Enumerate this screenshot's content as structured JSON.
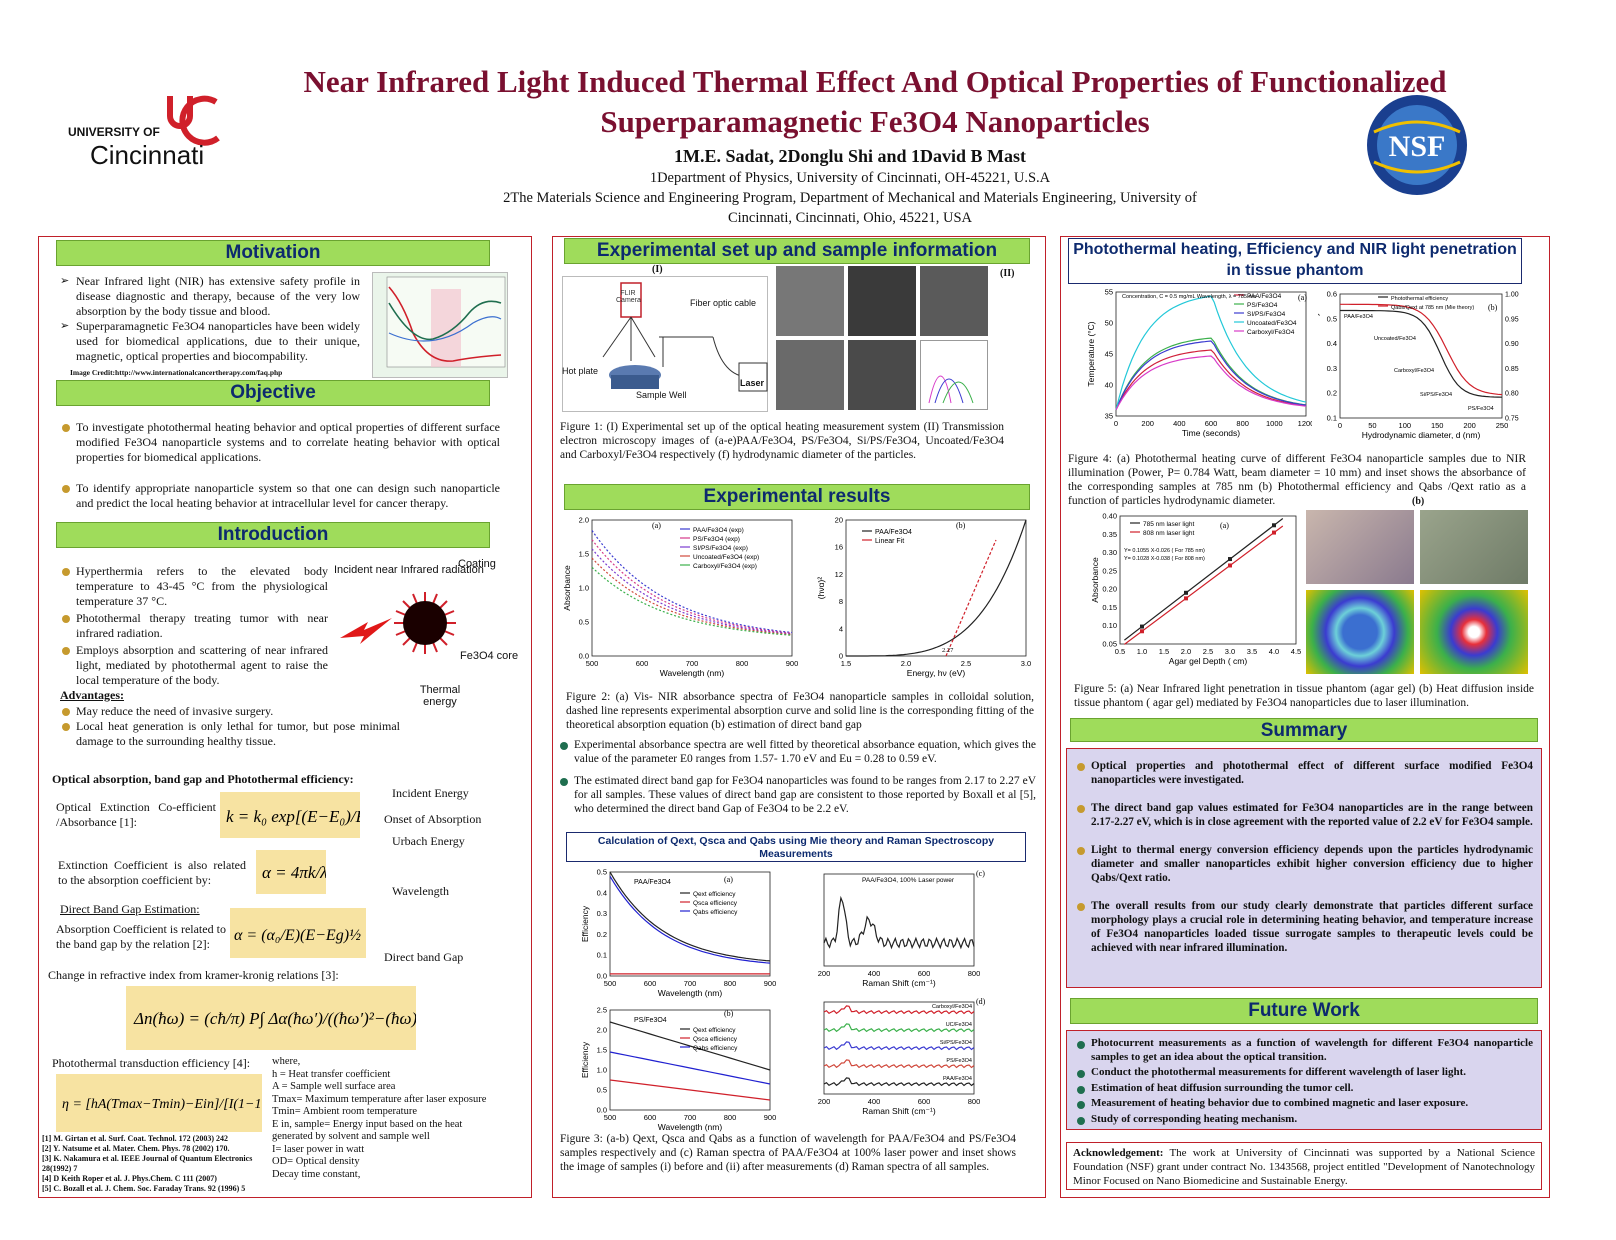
{
  "header": {
    "title_line1": "Near Infrared Light Induced Thermal Effect And Optical Properties of Functionalized",
    "title_line2": "Superparamagnetic Fe3O4 Nanoparticles",
    "authors": "1M.E. Sadat, 2Donglu Shi and 1David B Mast",
    "affil1": "1Department of Physics, University of Cincinnati, OH-45221, U.S.A",
    "affil2": "2The Materials Science and Engineering Program, Department of Mechanical and Materials Engineering, University of",
    "affil3": "Cincinnati, Cincinnati, Ohio,  45221, USA",
    "uc_logo_top": "UNIVERSITY OF",
    "uc_logo_bottom": "Cincinnati",
    "nsf_logo": "NSF"
  },
  "left": {
    "motivation_head": "Motivation",
    "motivation_items": [
      "Near Infrared light (NIR) has extensive safety profile in disease diagnostic and therapy, because of the very low absorption by the body tissue and blood.",
      "Superparamagnetic Fe3O4 nanoparticles have been widely used for biomedical applications, due to their unique, magnetic, optical properties and biocompability."
    ],
    "image_credit": "Image Credit:http://www.internationalcancertherapy.com/faq.php",
    "objective_head": "Objective",
    "objective_items": [
      "To investigate photothermal heating behavior and optical properties of different surface modified Fe3O4 nanoparticle systems and to correlate heating behavior with optical properties for biomedical applications.",
      "To identify appropriate nanoparticle system so that one can design such nanoparticle and predict the local heating behavior at intracellular level for cancer therapy."
    ],
    "intro_head": "Introduction",
    "intro_items": [
      "Hyperthermia refers to the elevated body temperature to 43-45 °C from the physiological temperature 37 °C.",
      "Photothermal therapy treating tumor with near infrared radiation.",
      "Employs absorption and scattering of near infrared light, mediated by photothermal agent to raise the local temperature of the body."
    ],
    "advantages_head": "Advantages:",
    "advantages_items": [
      "May reduce the need of invasive surgery.",
      "Local heat generation is only lethal for tumor, but pose minimal damage to the surrounding healthy tissue."
    ],
    "np_labels": {
      "incident": "Incident near Infrared radiation",
      "coating": "Coating",
      "core": "Fe3O4 core",
      "thermal": "Thermal energy"
    },
    "optical_head": "Optical absorption, band gap and Photothermal efficiency:",
    "eq_labels": {
      "extinction": "Optical Extinction Co-efficient /Absorbance [1]:",
      "incident_energy": "Incident Energy",
      "onset": "Onset of Absorption",
      "urbach": "Urbach Energy",
      "ext_related": "Extinction Coefficient is also related to the absorption coefficient by:",
      "wavelength": "Wavelength",
      "direct_est": "Direct Band Gap Estimation:",
      "abs_related": "Absorption Coefficient is related to the band gap by the relation [2]:",
      "direct_gap": "Direct band Gap",
      "refractive": "Change in refractive index from kramer-kronig relations [3]:",
      "transduction": "Photothermal transduction efficiency [4]:"
    },
    "where_list": [
      "where,",
      "h = Heat transfer coefficient",
      "A = Sample well surface area",
      "Tmax= Maximum temperature after laser exposure",
      "Tmin= Ambient room temperature",
      "E in, sample= Energy input based on the heat generated by solvent and sample well",
      "I= laser power in watt",
      "OD= Optical density",
      "Decay time constant,"
    ],
    "references": [
      "[1] M. Girtan et al.  Surf. Coat. Technol. 172 (2003) 242",
      "[2] Y. Natsume et al.  Mater. Chem. Phys. 78 (2002) 170.",
      "[3] K. Nakamura et al. IEEE Journal of Quantum Electronics 28(1992) 7",
      "[4] D Keith Roper et al. J. Phys.Chem. C 111 (2007)",
      "[5] C. Bozall et al. J. Chem. Soc. Faraday Trans. 92 (1996) 5"
    ]
  },
  "middle": {
    "setup_head": "Experimental set up and sample information",
    "setup_labels": {
      "flir": "FLIR Camera",
      "fiber": "Fiber optic cable",
      "hotplate": "Hot plate",
      "well": "Sample Well",
      "laser": "Laser",
      "i": "(I)",
      "ii": "(II)"
    },
    "fig1_caption": "Figure 1: (I) Experimental set up of the optical heating measurement system (II) Transmission electron microscopy images of (a-e)PAA/Fe3O4, PS/Fe3O4, Si/PS/Fe3O4, Uncoated/Fe3O4 and Carboxyl/Fe3O4 respectively (f) hydrodynamic diameter of the particles.",
    "results_head": "Experimental results",
    "fig2_caption": "Figure 2: (a) Vis- NIR absorbance spectra of Fe3O4 nanoparticle samples in colloidal solution, dashed line represents experimental absorption curve and solid line is the corresponding fitting of the theoretical absorption equation (b) estimation of direct band gap",
    "result_items": [
      "Experimental absorbance spectra are well fitted by theoretical absorbance equation, which gives the value of the parameter E0 ranges from 1.57- 1.70 eV and  Eu = 0.28 to 0.59 eV.",
      "The estimated direct band gap for Fe3O4 nanoparticles was found to be ranges from 2.17 to 2.27 eV for all samples. These values of direct band gap are consistent to those reported by Boxall et al [5], who determined the direct band Gap of Fe3O4 to be 2.2 eV."
    ],
    "mie_head": "Calculation of Qext, Qsca and Qabs using Mie theory and Raman Spectroscopy Measurements",
    "fig3_caption": "Figure 3: (a-b) Qext, Qsca and Qabs as a function of wavelength for PAA/Fe3O4 and PS/Fe3O4 samples respectively and  (c) Raman spectra of PAA/Fe3O4 at 100%  laser power and inset shows the image of samples (i) before and (ii) after measurements (d) Raman spectra of all samples."
  },
  "right": {
    "photo_head": "Photothermal heating, Efficiency and NIR light penetration in tissue phantom",
    "fig4_caption": "Figure 4: (a) Photothermal heating curve of different Fe3O4 nanoparticle samples due to NIR illumination (Power, P= 0.784 Watt, beam diameter = 10 mm) and inset shows the absorbance of the corresponding samples at 785 nm (b) Photothermal efficiency and Qabs /Qext ratio as a function of particles hydrodynamic diameter.",
    "fig5_caption": "Figure 5: (a) Near Infrared light penetration in tissue phantom (agar gel) (b) Heat diffusion inside tissue phantom ( agar gel) mediated by Fe3O4 nanoparticles due to laser illumination.",
    "summary_head": "Summary",
    "summary_items": [
      "Optical properties and photothermal effect of different surface modified Fe3O4 nanoparticles were investigated.",
      "The direct band gap values estimated for Fe3O4 nanoparticles are in the range between 2.17-2.27 eV, which is in close agreement with the reported value of 2.2 eV for Fe3O4 sample.",
      "Light to thermal energy conversion efficiency depends upon the particles hydrodynamic diameter and smaller nanoparticles exhibit higher conversion efficiency due to higher Qabs/Qext ratio.",
      "The overall results from our study clearly demonstrate that particles different surface morphology plays a crucial role in determining heating behavior, and temperature increase of Fe3O4 nanoparticles loaded tissue surrogate samples to therapeutic levels could be achieved with near infrared illumination."
    ],
    "future_head": "Future Work",
    "future_items": [
      "Photocurrent measurements as a function of wavelength for different Fe3O4 nanoparticle samples to get an idea about the optical transition.",
      "Conduct the photothermal measurements for different wavelength of laser light.",
      "Estimation of heat diffusion surrounding the tumor cell.",
      "Measurement of heating behavior due to combined magnetic and laser exposure.",
      "Study of corresponding heating mechanism."
    ],
    "ack_label": "Acknowledgement:",
    "ack_text": "The work at University of Cincinnati was supported by a National Science Foundation (NSF) grant under contract  No. 1343568, project entitled \"Development of Nanotechnology Minor Focused on Nano Biomedicine and Sustainable Energy."
  },
  "charts": {
    "fig2a": {
      "xlabel": "Wavelength (nm)",
      "ylabel": "Absorbance",
      "xticks": [
        "500",
        "600",
        "700",
        "800",
        "900"
      ],
      "yticks": [
        "0.0",
        "0.5",
        "1.0",
        "1.5",
        "2.0"
      ],
      "legend": [
        "PAA/Fe3O4 (exp)",
        "PS/Fe3O4 (exp)",
        "SI/PS/Fe3O4 (exp)",
        "Uncoated/Fe3O4 (exp)",
        "Carboxyl/Fe3O4 (exp)"
      ],
      "colors": [
        "#3b3bd0",
        "#d43a8a",
        "#7b3bd0",
        "#d0483b",
        "#3bb04b"
      ]
    },
    "fig2b": {
      "xlabel": "Energy, hν (eV)",
      "ylabel": "(hνα)²",
      "xticks": [
        "1.5",
        "2.0",
        "2.5",
        "3.0"
      ],
      "yticks": [
        "0",
        "4",
        "8",
        "12",
        "16",
        "20"
      ],
      "legend": [
        "PAA/Fe3O4",
        "Linear Fit"
      ],
      "annot": "2.27"
    },
    "fig3a": {
      "title": "PAA/Fe3O4",
      "xlabel": "Wavelength (nm)",
      "ylabel": "Efficiency",
      "xticks": [
        "500",
        "600",
        "700",
        "800",
        "900"
      ],
      "yticks": [
        "0.0",
        "0.1",
        "0.2",
        "0.3",
        "0.4",
        "0.5"
      ],
      "legend": [
        "Qext efficiency",
        "Qsca efficiency",
        "Qabs efficiency"
      ]
    },
    "fig3b": {
      "title": "PS/Fe3O4",
      "xlabel": "Wavelength (nm)",
      "ylabel": "Efficiency",
      "xticks": [
        "500",
        "600",
        "700",
        "800",
        "900"
      ],
      "yticks": [
        "0.0",
        "0.5",
        "1.0",
        "1.5",
        "2.0",
        "2.5"
      ],
      "legend": [
        "Qext efficiency",
        "Qsca efficiency",
        "Qabs efficiency"
      ]
    },
    "fig3c": {
      "xlabel": "Raman Shift (cm⁻¹)",
      "ylabel": "Counts",
      "xticks": [
        "200",
        "400",
        "600",
        "800"
      ],
      "legend": "PAA/Fe3O4, 100% Laser power"
    },
    "fig3d": {
      "xlabel": "Raman Shift (cm⁻¹)",
      "ylabel": "Counts",
      "xticks": [
        "200",
        "400",
        "600",
        "800"
      ],
      "series": [
        "Carboxyl/Fe3O4",
        "UC/Fe3O4",
        "Si/PS/Fe3O4",
        "PS/Fe3O4",
        "PAA/Fe3O4"
      ]
    },
    "fig4a": {
      "xlabel": "Time (seconds)",
      "ylabel": "Temperature (°C)",
      "xticks": [
        "0",
        "200",
        "400",
        "600",
        "800",
        "1000",
        "1200"
      ],
      "yticks": [
        "35",
        "40",
        "45",
        "50",
        "55"
      ],
      "note": "Concentration, C = 0.5 mg/mL Wavelength, λ = 785 nm",
      "legend": [
        "PAA/Fe3O4",
        "PS/Fe3O4",
        "SI/PS/Fe3O4",
        "Uncoated/Fe3O4",
        "Carboxyl/Fe3O4"
      ],
      "colors": [
        "#d0203a",
        "#3bb04b",
        "#3b3bd0",
        "#22c8d8",
        "#d83bc8"
      ]
    },
    "fig4b": {
      "xlabel": "Hydrodynamic diameter, d (nm)",
      "ylabel": "Photothermal efficiency",
      "ylabel2": "Qabs/Qext",
      "xticks": [
        "0",
        "50",
        "100",
        "150",
        "200",
        "250"
      ],
      "yticks": [
        "0.1",
        "0.2",
        "0.3",
        "0.4",
        "0.5",
        "0.6"
      ],
      "y2ticks": [
        "0.75",
        "0.80",
        "0.85",
        "0.90",
        "0.95",
        "1.00"
      ],
      "legend": [
        "Photothermal efficiency",
        "Qabs/Qext at 785 nm (Mie theory)"
      ],
      "points": [
        "PAA/Fe3O4",
        "Uncoated/Fe3O4",
        "Carboxyl/Fe3O4",
        "Si/PS/Fe3O4",
        "PS/Fe3O4"
      ]
    },
    "fig5a": {
      "xlabel": "Agar gel Depth ( cm)",
      "ylabel": "Absorbance",
      "xticks": [
        "0.5",
        "1.0",
        "1.5",
        "2.0",
        "2.5",
        "3.0",
        "3.5",
        "4.0",
        "4.5"
      ],
      "yticks": [
        "0.05",
        "0.10",
        "0.15",
        "0.20",
        "0.25",
        "0.30",
        "0.35",
        "0.40"
      ],
      "legend": [
        "785 nm laser light",
        "808 nm laser light"
      ],
      "fit1": "Y= 0.1055 X-0.026 ( For 785 nm)",
      "fit2": "Y= 0.1028 X-0.038 ( For 808 nm)"
    },
    "panel_letters": {
      "a": "(a)",
      "b": "(b)",
      "c": "(c)",
      "d": "(d)"
    }
  }
}
